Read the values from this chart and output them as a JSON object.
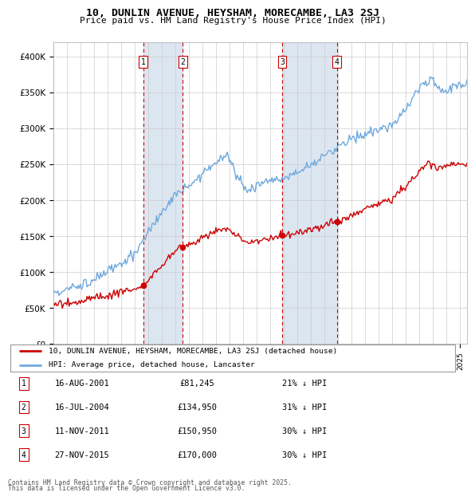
{
  "title": "10, DUNLIN AVENUE, HEYSHAM, MORECAMBE, LA3 2SJ",
  "subtitle": "Price paid vs. HM Land Registry's House Price Index (HPI)",
  "xlim": [
    1995.0,
    2025.5
  ],
  "ylim": [
    0,
    420000
  ],
  "yticks": [
    0,
    50000,
    100000,
    150000,
    200000,
    250000,
    300000,
    350000,
    400000
  ],
  "ytick_labels": [
    "£0",
    "£50K",
    "£100K",
    "£150K",
    "£200K",
    "£250K",
    "£300K",
    "£350K",
    "£400K"
  ],
  "hpi_color": "#6fa8dc",
  "price_color": "#cc0000",
  "transactions": [
    {
      "num": 1,
      "date": "16-AUG-2001",
      "year": 2001.62,
      "price": 81245,
      "pct": "21%",
      "dir": "↓"
    },
    {
      "num": 2,
      "date": "16-JUL-2004",
      "year": 2004.54,
      "price": 134950,
      "pct": "31%",
      "dir": "↓"
    },
    {
      "num": 3,
      "date": "11-NOV-2011",
      "year": 2011.87,
      "price": 150950,
      "pct": "30%",
      "dir": "↓"
    },
    {
      "num": 4,
      "date": "27-NOV-2015",
      "year": 2015.91,
      "price": 170000,
      "pct": "30%",
      "dir": "↓"
    }
  ],
  "legend_line1": "10, DUNLIN AVENUE, HEYSHAM, MORECAMBE, LA3 2SJ (detached house)",
  "legend_line2": "HPI: Average price, detached house, Lancaster",
  "footer1": "Contains HM Land Registry data © Crown copyright and database right 2025.",
  "footer2": "This data is licensed under the Open Government Licence v3.0.",
  "background_color": "#ffffff",
  "shade_color": "#dce6f1"
}
